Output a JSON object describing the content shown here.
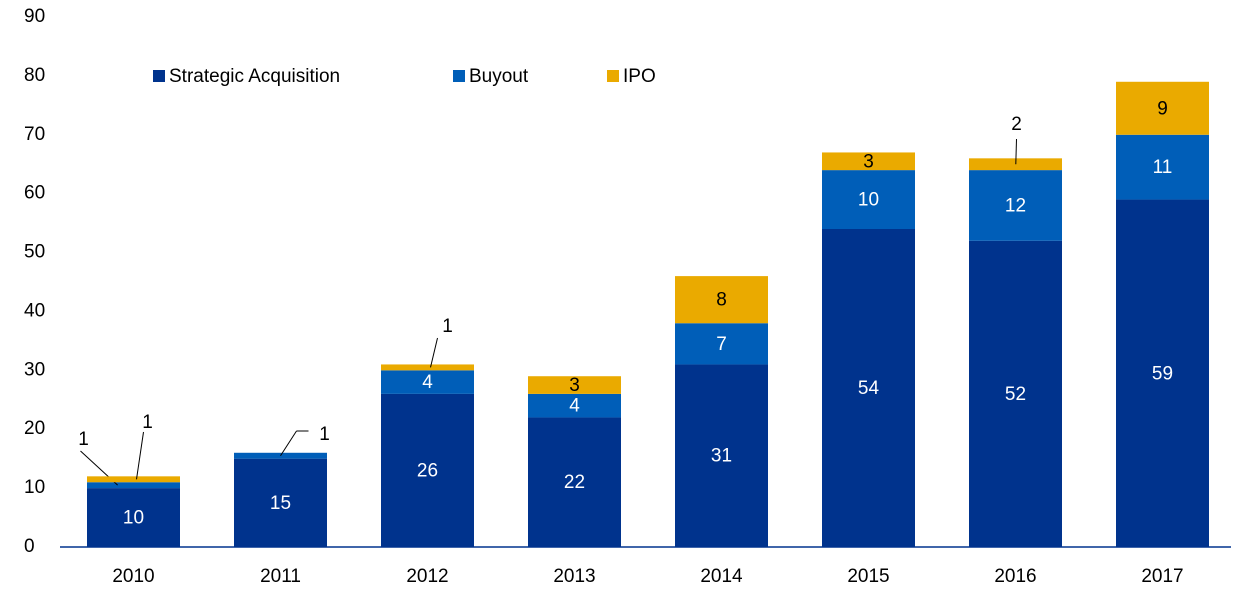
{
  "chart_data": {
    "type": "bar",
    "stacked": true,
    "categories": [
      "2010",
      "2011",
      "2012",
      "2013",
      "2014",
      "2015",
      "2016",
      "2017"
    ],
    "series": [
      {
        "name": "Strategic Acquisition",
        "color": "#00338d",
        "values": [
          10,
          15,
          26,
          22,
          31,
          54,
          52,
          59
        ]
      },
      {
        "name": "Buyout",
        "color": "#005eb8",
        "values": [
          1,
          1,
          4,
          4,
          7,
          10,
          12,
          11
        ]
      },
      {
        "name": "IPO",
        "color": "#eaaa00",
        "values": [
          1,
          null,
          1,
          3,
          8,
          3,
          2,
          9
        ]
      }
    ],
    "ylim": [
      0,
      90
    ],
    "yticks": [
      0,
      10,
      20,
      30,
      40,
      50,
      60,
      70,
      80,
      90
    ],
    "legend": "top"
  }
}
